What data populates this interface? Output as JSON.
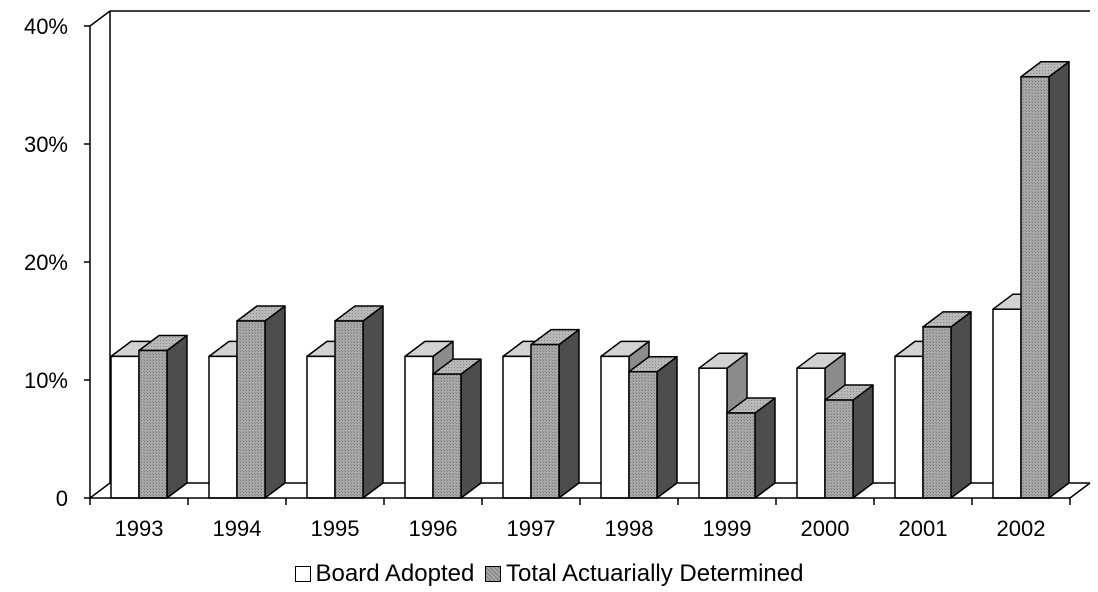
{
  "chart_data": {
    "type": "bar",
    "title": "",
    "xlabel": "",
    "ylabel": "",
    "categories": [
      "1993",
      "1994",
      "1995",
      "1996",
      "1997",
      "1998",
      "1999",
      "2000",
      "2001",
      "2002"
    ],
    "series": [
      {
        "name": "Board Adopted",
        "values": [
          12,
          12,
          12,
          12,
          12,
          12,
          11,
          11,
          12,
          16
        ]
      },
      {
        "name": "Total Actuarially Determined",
        "values": [
          12.5,
          15,
          15,
          10.5,
          13,
          10.7,
          7.2,
          8.3,
          14.5,
          35.7
        ]
      }
    ],
    "ylim": [
      0,
      40
    ],
    "yticks": [
      "0",
      "10%",
      "20%",
      "30%",
      "40%"
    ],
    "legend_position": "bottom",
    "grid": false,
    "style": "3d-clustered-column",
    "colors": {
      "Board Adopted": "#ffffff",
      "Total Actuarially Determined": "#a8a8a8",
      "dark_side": "#4a4a4a"
    }
  }
}
